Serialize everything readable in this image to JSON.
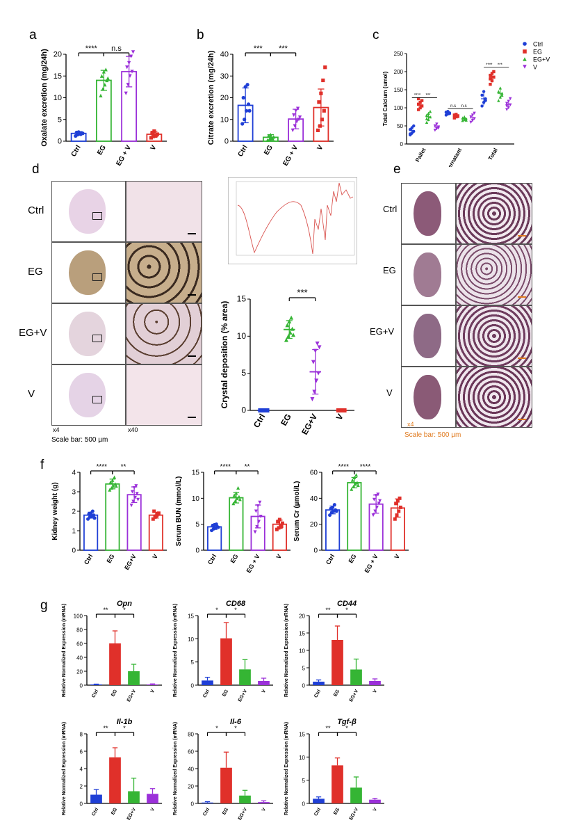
{
  "panels": {
    "a": "a",
    "b": "b",
    "c": "c",
    "d": "d",
    "e": "e",
    "f": "f",
    "g": "g"
  },
  "colors": {
    "ctrl": "#1f3fd6",
    "eg": "#e0302a",
    "egv_green": "#35b534",
    "v_purple": "#9b30d9",
    "scale_orange": "#e07b20"
  },
  "panel_d": {
    "rows": [
      "Ctrl",
      "EG",
      "EG+V",
      "V"
    ],
    "mag_left": "x4",
    "mag_right": "x40",
    "scale_bar": "Scale bar: 500 µm"
  },
  "panel_e": {
    "rows": [
      "Ctrl",
      "EG",
      "EG+V",
      "V"
    ],
    "mag_left": "x4",
    "scale_bar": "Scale bar: 500 µm"
  },
  "chart_data": [
    {
      "id": "a",
      "type": "bar",
      "ylabel": "Oxalate excretion (mg/24h)",
      "categories": [
        "Ctrl",
        "EG",
        "EG + V",
        "V"
      ],
      "values": [
        1.8,
        14,
        16,
        1.6
      ],
      "errors": [
        0.4,
        2.3,
        3.5,
        0.7
      ],
      "points": [
        [
          1.2,
          1.5,
          1.7,
          1.9,
          2.0,
          2.1,
          1.6,
          1.8
        ],
        [
          10.5,
          12,
          13,
          14,
          15,
          16,
          16.5,
          14.5
        ],
        [
          11,
          13,
          15,
          16,
          17,
          18,
          19.5,
          20.5
        ],
        [
          0.8,
          1.1,
          1.3,
          1.6,
          1.9,
          2.3,
          1.4
        ]
      ],
      "ylim": [
        0,
        20
      ],
      "yticks": [
        0,
        5,
        10,
        15,
        20
      ],
      "sig": [
        {
          "from": 0,
          "to": 1,
          "label": "****"
        },
        {
          "from": 1,
          "to": 2,
          "label": "n.s"
        }
      ]
    },
    {
      "id": "b",
      "type": "bar",
      "ylabel": "Citrate excretion (mg/24h)",
      "categories": [
        "Ctrl",
        "EG",
        "EG + V",
        "V"
      ],
      "values": [
        16.5,
        1.8,
        10.2,
        15.5
      ],
      "errors": [
        8,
        1.2,
        4.5,
        8.5
      ],
      "points": [
        [
          8,
          10,
          14,
          17,
          20,
          25,
          26,
          14
        ],
        [
          0.5,
          1,
          1.5,
          2,
          2.5,
          3,
          1.2
        ],
        [
          5,
          7,
          9,
          10,
          12,
          14,
          15,
          11
        ],
        [
          5,
          7,
          10,
          14,
          18,
          22,
          28,
          34
        ]
      ],
      "ylim": [
        0,
        40
      ],
      "yticks": [
        0,
        10,
        20,
        30,
        40
      ],
      "sig": [
        {
          "from": 0,
          "to": 1,
          "label": "***"
        },
        {
          "from": 1,
          "to": 2,
          "label": "***"
        }
      ]
    },
    {
      "id": "c",
      "type": "scatter",
      "ylabel": "Total Calcium (umol)",
      "categories": [
        "Pallet",
        "Supernatant",
        "Total"
      ],
      "series": [
        {
          "name": "Ctrl",
          "means": [
            37,
            85,
            125
          ],
          "errors": [
            12,
            6,
            18
          ],
          "points": [
            [
              25,
              30,
              35,
              40,
              45,
              50,
              28
            ],
            [
              80,
              83,
              86,
              88,
              90,
              84
            ],
            [
              105,
              115,
              125,
              135,
              145,
              120
            ]
          ]
        },
        {
          "name": "EG",
          "means": [
            108,
            78,
            185
          ],
          "errors": [
            12,
            6,
            15
          ],
          "points": [
            [
              95,
              100,
              105,
              110,
              115,
              120,
              125
            ],
            [
              72,
              75,
              78,
              80,
              82,
              76
            ],
            [
              165,
              175,
              185,
              190,
              195,
              200,
              180
            ]
          ]
        },
        {
          "name": "EG+V",
          "means": [
            75,
            70,
            140
          ],
          "errors": [
            12,
            6,
            15
          ],
          "points": [
            [
              60,
              68,
              75,
              80,
              85,
              90,
              70
            ],
            [
              65,
              68,
              70,
              72,
              75,
              66
            ],
            [
              120,
              130,
              140,
              145,
              155,
              135
            ]
          ]
        },
        {
          "name": "V",
          "means": [
            47,
            72,
            110
          ],
          "errors": [
            8,
            10,
            12
          ],
          "points": [
            [
              38,
              42,
              47,
              50,
              55,
              44
            ],
            [
              60,
              65,
              70,
              75,
              80,
              85
            ],
            [
              95,
              100,
              108,
              112,
              118,
              125,
              105
            ]
          ]
        }
      ],
      "ylim": [
        0,
        250
      ],
      "yticks": [
        0,
        50,
        100,
        150,
        200,
        250
      ],
      "sig_labels": [
        "****",
        "***",
        "n.s",
        "n.s",
        "****",
        "***"
      ],
      "legend": "top-right"
    },
    {
      "id": "d",
      "type": "scatter",
      "ylabel": "Crystal deposition (% area)",
      "categories": [
        "Ctrl",
        "EG",
        "EG+V",
        "V"
      ],
      "values": [
        0,
        10.9,
        5.2,
        0
      ],
      "errors": [
        0,
        1.2,
        3,
        0
      ],
      "points": [
        [
          0,
          0,
          0,
          0,
          0,
          0,
          0,
          0
        ],
        [
          9.5,
          10,
          10.5,
          11,
          11.5,
          12,
          12.5,
          10.2
        ],
        [
          1.5,
          2.5,
          4,
          5,
          6.5,
          8,
          9,
          8.5
        ],
        [
          0,
          0,
          0,
          0,
          0,
          0,
          0
        ]
      ],
      "ylim": [
        0,
        15
      ],
      "yticks": [
        0,
        5,
        10,
        15
      ],
      "sig": [
        {
          "from": 1,
          "to": 2,
          "label": "***"
        }
      ]
    },
    {
      "id": "f1",
      "type": "bar",
      "ylabel": "Kidney weight (g)",
      "categories": [
        "Ctrl",
        "EG",
        "EG+V",
        "V"
      ],
      "values": [
        1.8,
        3.4,
        2.85,
        1.8
      ],
      "errors": [
        0.15,
        0.25,
        0.4,
        0.15
      ],
      "points": [
        [
          1.6,
          1.7,
          1.75,
          1.8,
          1.85,
          1.9,
          2.0,
          1.65
        ],
        [
          3.1,
          3.2,
          3.3,
          3.4,
          3.5,
          3.6,
          3.75,
          3.3
        ],
        [
          2.3,
          2.5,
          2.7,
          2.9,
          3.0,
          3.2,
          3.3,
          2.6
        ],
        [
          1.6,
          1.7,
          1.8,
          1.9,
          2.0,
          1.75,
          1.85
        ]
      ],
      "ylim": [
        0,
        4
      ],
      "yticks": [
        0,
        1,
        2,
        3,
        4
      ],
      "sig": [
        {
          "from": 0,
          "to": 1,
          "label": "****"
        },
        {
          "from": 1,
          "to": 2,
          "label": "**"
        }
      ]
    },
    {
      "id": "f2",
      "type": "bar",
      "ylabel": "Serum BUN (mmol/L)",
      "categories": [
        "Ctrl",
        "EG",
        "EG + V",
        "V"
      ],
      "values": [
        4.5,
        10.1,
        6.5,
        5
      ],
      "errors": [
        0.5,
        1.0,
        2.2,
        0.8
      ],
      "points": [
        [
          3.8,
          4.1,
          4.3,
          4.5,
          4.7,
          4.9,
          5.0,
          4.4
        ],
        [
          9,
          9.5,
          10,
          10.3,
          10.6,
          11,
          12,
          9.8
        ],
        [
          3.5,
          4.5,
          5.5,
          6.5,
          7.5,
          8.5,
          9.2
        ],
        [
          4,
          4.3,
          4.8,
          5.2,
          5.5,
          5.9,
          4.6
        ]
      ],
      "ylim": [
        0,
        15
      ],
      "yticks": [
        0,
        5,
        10,
        15
      ],
      "sig": [
        {
          "from": 0,
          "to": 1,
          "label": "****"
        },
        {
          "from": 1,
          "to": 2,
          "label": "**"
        }
      ]
    },
    {
      "id": "f3",
      "type": "bar",
      "ylabel": "Serum Cr (µmol/L)",
      "categories": [
        "Ctrl",
        "EG",
        "EG + V",
        "V"
      ],
      "values": [
        31,
        52,
        35.5,
        32.5
      ],
      "errors": [
        3,
        4,
        7,
        7
      ],
      "points": [
        [
          27,
          29,
          30,
          31,
          32,
          33,
          35,
          30
        ],
        [
          47,
          49,
          51,
          52,
          54,
          56,
          58,
          50
        ],
        [
          27,
          30,
          33,
          36,
          39,
          42,
          43,
          38
        ],
        [
          24,
          27,
          30,
          33,
          36,
          38,
          40
        ]
      ],
      "ylim": [
        0,
        60
      ],
      "yticks": [
        0,
        20,
        40,
        60
      ],
      "sig": [
        {
          "from": 0,
          "to": 1,
          "label": "****"
        },
        {
          "from": 1,
          "to": 2,
          "label": "****"
        }
      ]
    },
    {
      "id": "g1",
      "type": "bar",
      "title": "Opn",
      "ylabel": "Relative Normalized Expression (mRNA)",
      "categories": [
        "Ctrl",
        "EG",
        "EG+V",
        "V"
      ],
      "values": [
        1,
        60,
        20,
        1
      ],
      "errors": [
        0.5,
        18,
        10,
        0.8
      ],
      "ylim": [
        0,
        100
      ],
      "yticks": [
        0,
        20,
        40,
        60,
        80,
        100
      ],
      "sig": [
        {
          "from": 0,
          "to": 1,
          "label": "**"
        },
        {
          "from": 1,
          "to": 2,
          "label": "*"
        }
      ]
    },
    {
      "id": "g2",
      "type": "bar",
      "title": "CD68",
      "ylabel": "Relative Normalized Expression (mRNA)",
      "categories": [
        "Ctrl",
        "EG",
        "EG+V",
        "V"
      ],
      "values": [
        1,
        10.1,
        3.4,
        0.9
      ],
      "errors": [
        0.7,
        3.4,
        2.1,
        0.6
      ],
      "ylim": [
        0,
        15
      ],
      "yticks": [
        0,
        5,
        10,
        15
      ],
      "sig": [
        {
          "from": 0,
          "to": 1,
          "label": "*"
        },
        {
          "from": 1,
          "to": 2,
          "label": "*"
        }
      ]
    },
    {
      "id": "g3",
      "type": "bar",
      "title": "CD44",
      "ylabel": "Relative Normalized Expression (mRNA)",
      "categories": [
        "Ctrl",
        "EG",
        "EG+V",
        "V"
      ],
      "values": [
        1,
        13,
        4.5,
        1.2
      ],
      "errors": [
        0.5,
        4,
        3,
        0.6
      ],
      "ylim": [
        0,
        20
      ],
      "yticks": [
        0,
        5,
        10,
        15,
        20
      ],
      "sig": [
        {
          "from": 0,
          "to": 1,
          "label": "**"
        },
        {
          "from": 1,
          "to": 2,
          "label": "*"
        }
      ]
    },
    {
      "id": "g4",
      "type": "bar",
      "title": "Il-1b",
      "ylabel": "Relative Normalized Expression (mRNA)",
      "categories": [
        "Ctrl",
        "EG",
        "EG+V",
        "V"
      ],
      "values": [
        1,
        5.3,
        1.4,
        1.1
      ],
      "errors": [
        0.6,
        1.1,
        1.5,
        0.6
      ],
      "ylim": [
        0,
        8
      ],
      "yticks": [
        0,
        2,
        4,
        6,
        8
      ],
      "sig": [
        {
          "from": 0,
          "to": 1,
          "label": "**"
        },
        {
          "from": 1,
          "to": 2,
          "label": "*"
        }
      ]
    },
    {
      "id": "g5",
      "type": "bar",
      "title": "Il-6",
      "ylabel": "Relative Normalized Expression (mRNA)",
      "categories": [
        "Ctrl",
        "EG",
        "EG+V",
        "V"
      ],
      "values": [
        1,
        41,
        9,
        1.5
      ],
      "errors": [
        1,
        18,
        6,
        1.5
      ],
      "ylim": [
        0,
        80
      ],
      "yticks": [
        0,
        20,
        40,
        60,
        80
      ],
      "sig": [
        {
          "from": 0,
          "to": 1,
          "label": "*"
        },
        {
          "from": 1,
          "to": 2,
          "label": "*"
        }
      ]
    },
    {
      "id": "g6",
      "type": "bar",
      "title": "Tgf-β",
      "ylabel": "Relative Normalized Expression (mRNA)",
      "categories": [
        "Ctrl",
        "EG",
        "EG+V",
        "V"
      ],
      "values": [
        1,
        8.2,
        3.4,
        0.8
      ],
      "errors": [
        0.4,
        1.6,
        2.3,
        0.3
      ],
      "ylim": [
        0,
        15
      ],
      "yticks": [
        0,
        5,
        10,
        15
      ],
      "sig": [
        {
          "from": 0,
          "to": 1,
          "label": "**"
        },
        {
          "from": 1,
          "to": 2,
          "label": "*"
        }
      ]
    }
  ]
}
